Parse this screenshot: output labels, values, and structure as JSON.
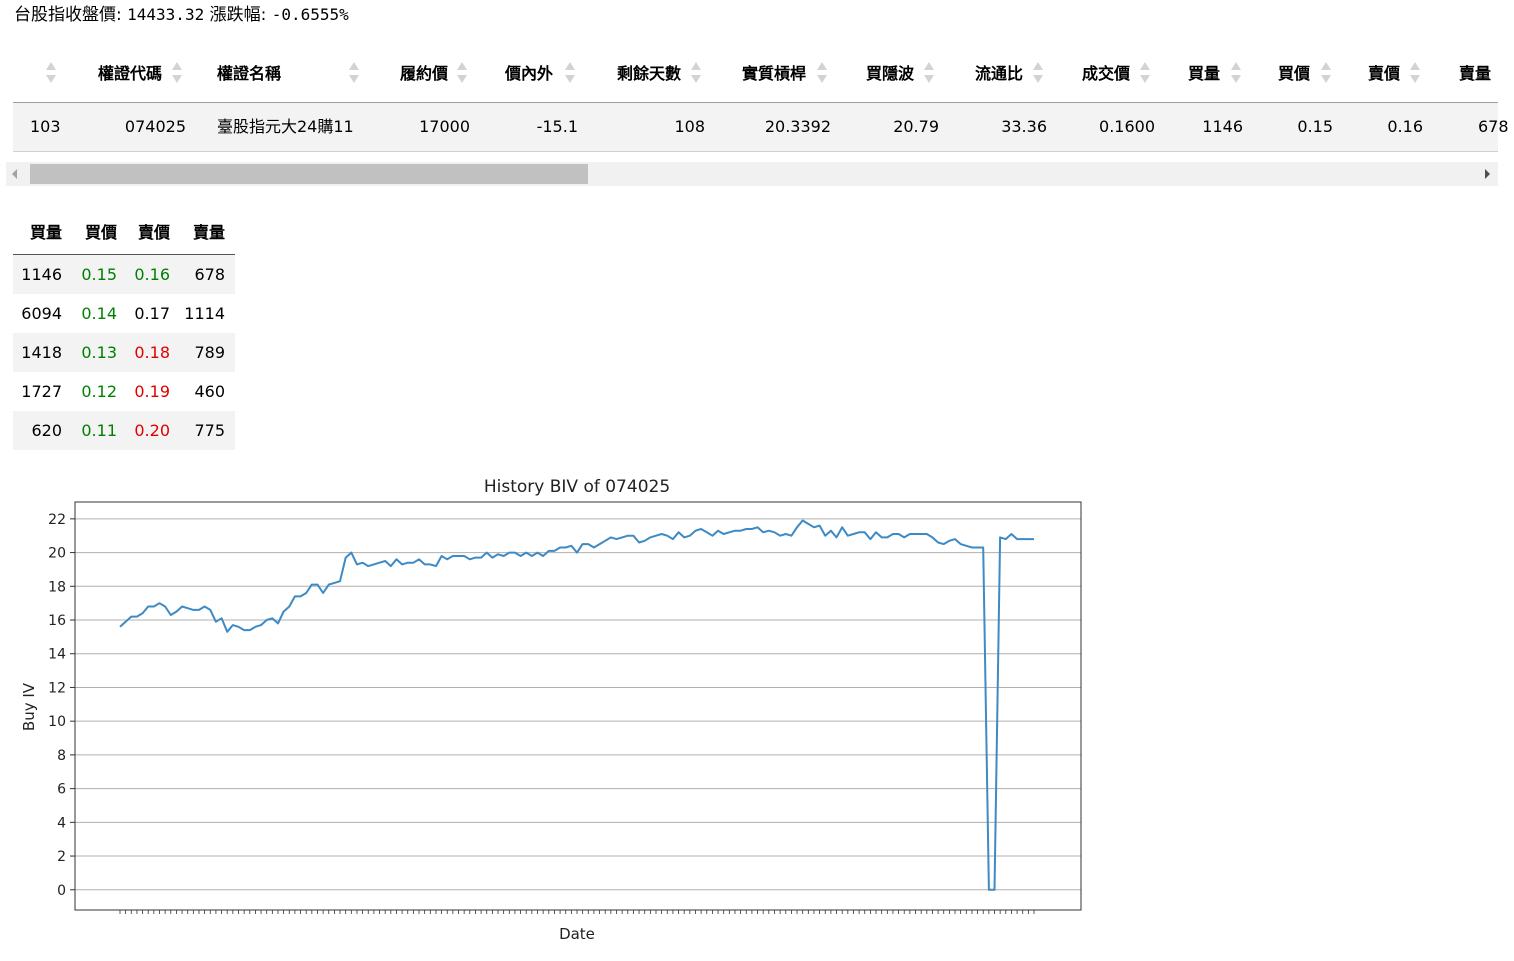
{
  "header": {
    "index_label": "台股指收盤價:",
    "index_value": "14433.32",
    "change_label": "漲跌幅:",
    "change_value": "-0.6555%"
  },
  "warrant_table": {
    "columns": [
      "",
      "權證代碼",
      "權證名稱",
      "履約價",
      "價內外",
      "剩餘天數",
      "實質槓桿",
      "買隱波",
      "流通比",
      "成交價",
      "買量",
      "買價",
      "賣價",
      "賣量"
    ],
    "row": [
      "103",
      "074025",
      "臺股指元大24購11",
      "17000",
      "-15.1",
      "108",
      "20.3392",
      "20.79",
      "33.36",
      "0.1600",
      "1146",
      "0.15",
      "0.16",
      "678"
    ]
  },
  "order_book": {
    "columns": [
      "買量",
      "買價",
      "賣價",
      "賣量"
    ],
    "rows": [
      {
        "bid_qty": "1146",
        "bid": "0.15",
        "ask": "0.16",
        "ask_qty": "678",
        "bid_color": "green",
        "ask_color": "green"
      },
      {
        "bid_qty": "6094",
        "bid": "0.14",
        "ask": "0.17",
        "ask_qty": "1114",
        "bid_color": "green",
        "ask_color": "black"
      },
      {
        "bid_qty": "1418",
        "bid": "0.13",
        "ask": "0.18",
        "ask_qty": "789",
        "bid_color": "green",
        "ask_color": "red"
      },
      {
        "bid_qty": "1727",
        "bid": "0.12",
        "ask": "0.19",
        "ask_qty": "460",
        "bid_color": "green",
        "ask_color": "red"
      },
      {
        "bid_qty": "620",
        "bid": "0.11",
        "ask": "0.20",
        "ask_qty": "775",
        "bid_color": "green",
        "ask_color": "red"
      }
    ]
  },
  "colors": {
    "up": "#008000",
    "down": "#e00000",
    "line": "#3d8ac4"
  },
  "chart_data": {
    "type": "line",
    "title": "History BIV of 074025",
    "xlabel": "Date",
    "ylabel": "Buy IV",
    "ylim": [
      -1.2,
      23
    ],
    "yticks": [
      0,
      2,
      4,
      6,
      8,
      10,
      12,
      14,
      16,
      18,
      20,
      22
    ],
    "grid": "y",
    "series": [
      {
        "values": [
          15.6,
          15.9,
          16.2,
          16.2,
          16.4,
          16.8,
          16.8,
          17.0,
          16.8,
          16.3,
          16.5,
          16.8,
          16.7,
          16.6,
          16.6,
          16.8,
          16.6,
          15.9,
          16.1,
          15.3,
          15.7,
          15.6,
          15.4,
          15.4,
          15.6,
          15.7,
          16.0,
          16.1,
          15.8,
          16.5,
          16.8,
          17.4,
          17.4,
          17.6,
          18.1,
          18.1,
          17.6,
          18.1,
          18.2,
          18.3,
          19.7,
          20.0,
          19.3,
          19.4,
          19.2,
          19.3,
          19.4,
          19.5,
          19.2,
          19.6,
          19.3,
          19.4,
          19.4,
          19.6,
          19.3,
          19.3,
          19.2,
          19.8,
          19.6,
          19.8,
          19.8,
          19.8,
          19.6,
          19.7,
          19.7,
          20.0,
          19.7,
          19.9,
          19.8,
          20.0,
          20.0,
          19.8,
          20.0,
          19.8,
          20.0,
          19.8,
          20.1,
          20.1,
          20.3,
          20.3,
          20.4,
          20.0,
          20.5,
          20.5,
          20.3,
          20.5,
          20.7,
          20.9,
          20.8,
          20.9,
          21.0,
          21.0,
          20.6,
          20.7,
          20.9,
          21.0,
          21.1,
          21.0,
          20.8,
          21.2,
          20.9,
          21.0,
          21.3,
          21.4,
          21.2,
          21.0,
          21.3,
          21.1,
          21.2,
          21.3,
          21.3,
          21.4,
          21.4,
          21.5,
          21.2,
          21.3,
          21.2,
          21.0,
          21.1,
          21.0,
          21.5,
          21.9,
          21.7,
          21.5,
          21.6,
          21.0,
          21.3,
          20.9,
          21.5,
          21.0,
          21.1,
          21.2,
          21.2,
          20.8,
          21.2,
          20.9,
          20.9,
          21.1,
          21.1,
          20.9,
          21.1,
          21.1,
          21.1,
          21.1,
          20.9,
          20.6,
          20.5,
          20.7,
          20.8,
          20.5,
          20.4,
          20.3,
          20.3,
          20.3,
          0.0,
          0.0,
          20.9,
          20.8,
          21.1,
          20.8,
          20.8,
          20.8,
          20.8
        ]
      }
    ]
  }
}
